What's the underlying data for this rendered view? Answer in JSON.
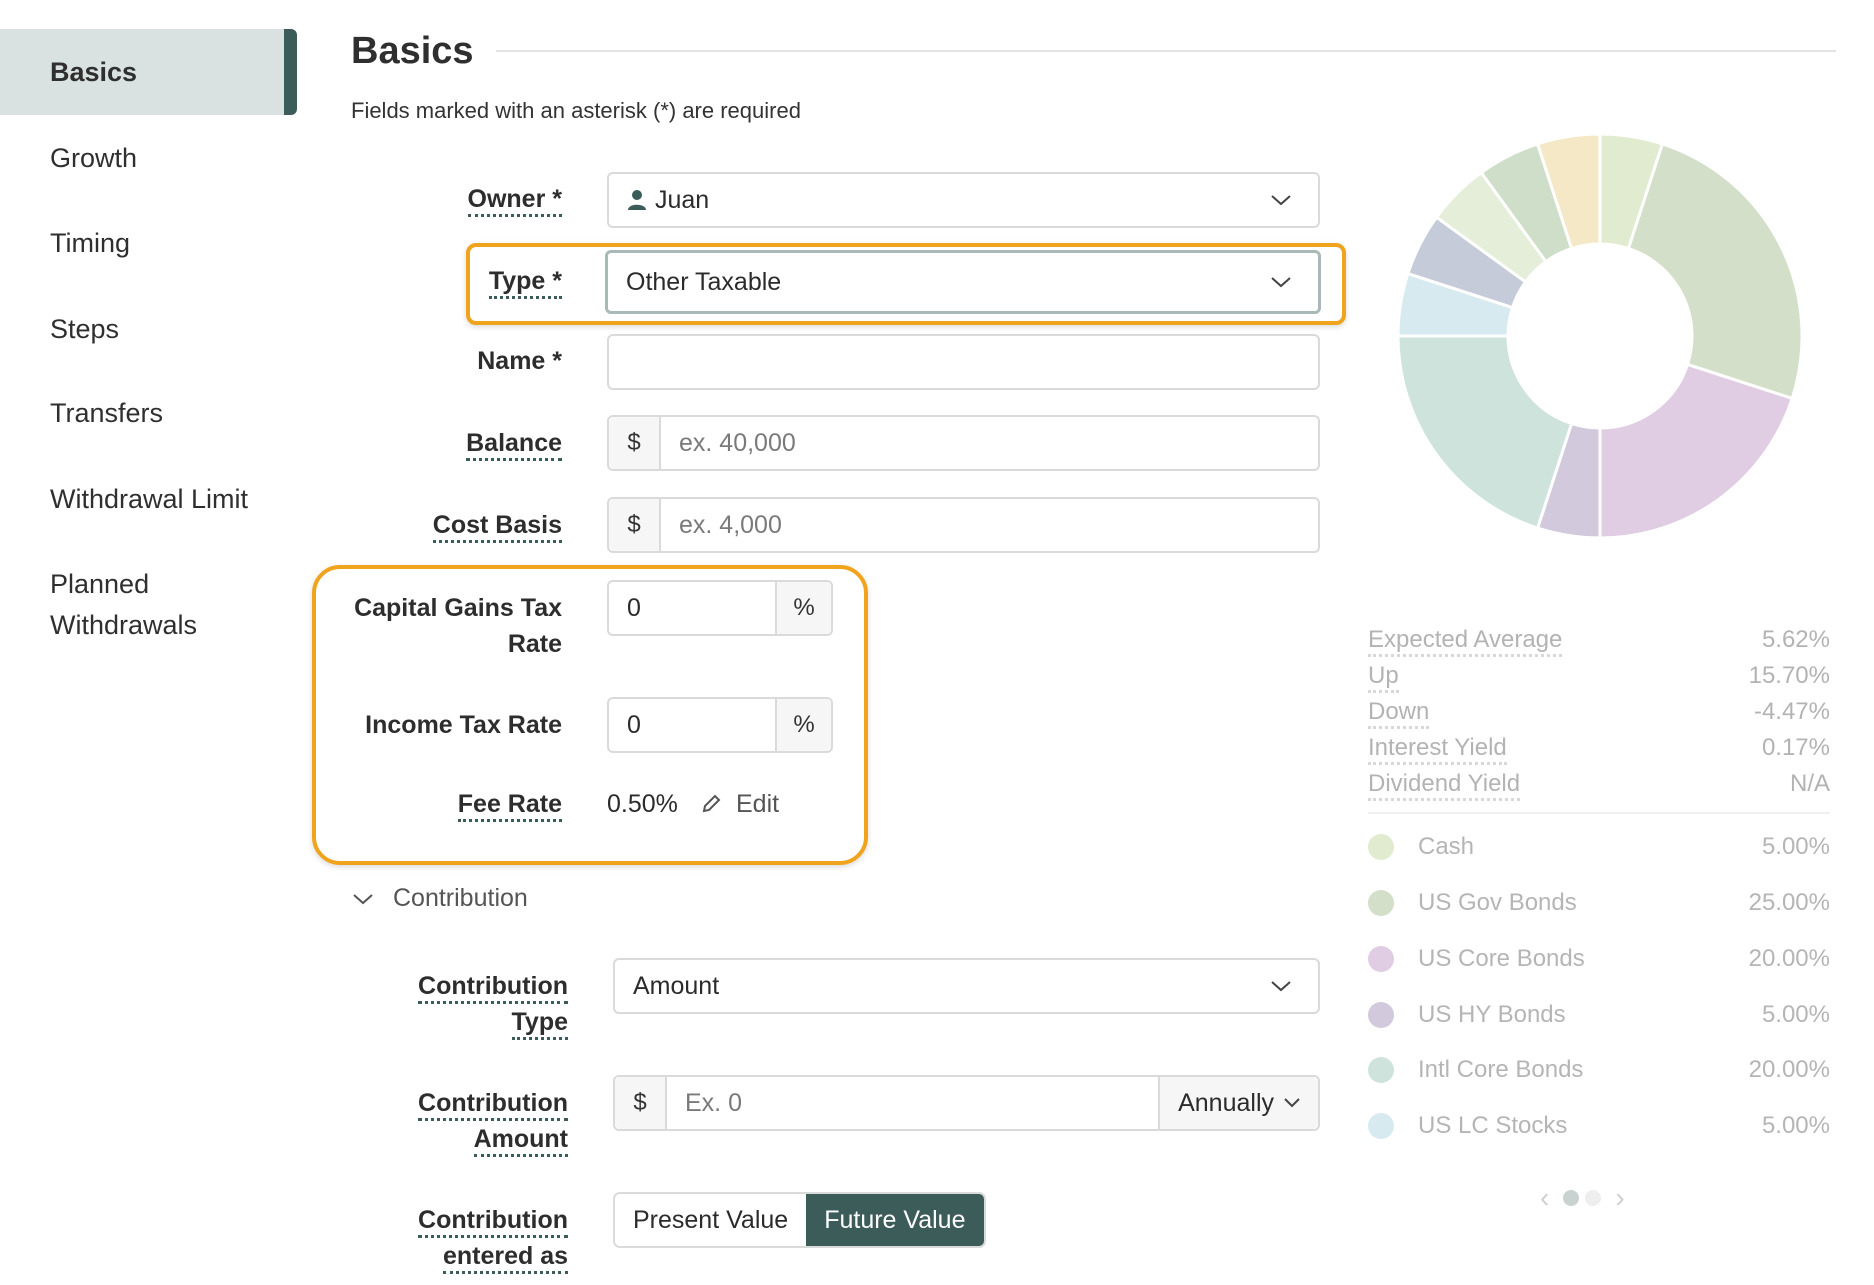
{
  "sidebar": {
    "items": [
      {
        "label": "Basics",
        "active": true
      },
      {
        "label": "Growth"
      },
      {
        "label": "Timing"
      },
      {
        "label": "Steps"
      },
      {
        "label": "Transfers"
      },
      {
        "label": "Withdrawal Limit"
      },
      {
        "label": "Planned Withdrawals"
      }
    ]
  },
  "header": {
    "title": "Basics",
    "required_note": "Fields marked with an asterisk (*) are required"
  },
  "form": {
    "owner": {
      "label": "Owner *",
      "value": "Juan"
    },
    "type": {
      "label": "Type *",
      "value": "Other Taxable"
    },
    "name": {
      "label": "Name *",
      "value": ""
    },
    "balance": {
      "label": "Balance",
      "prefix": "$",
      "placeholder": "ex. 40,000"
    },
    "cost_basis": {
      "label": "Cost Basis",
      "prefix": "$",
      "placeholder": "ex. 4,000"
    },
    "capital_gains": {
      "label_line1": "Capital Gains Tax",
      "label_line2": "Rate",
      "value": "0",
      "suffix": "%"
    },
    "income_tax": {
      "label": "Income Tax Rate",
      "value": "0",
      "suffix": "%"
    },
    "fee_rate": {
      "label": "Fee Rate",
      "value": "0.50%",
      "edit_label": "Edit"
    }
  },
  "contribution": {
    "section_label": "Contribution",
    "type": {
      "label_line1": "Contribution",
      "label_line2": "Type",
      "value": "Amount"
    },
    "amount": {
      "label_line1": "Contribution",
      "label_line2": "Amount",
      "prefix": "$",
      "placeholder": "Ex. 0",
      "frequency": "Annually"
    },
    "entered_as": {
      "label_line1": "Contribution",
      "label_line2": "entered as",
      "options": [
        "Present Value",
        "Future Value"
      ],
      "selected": "Future Value"
    }
  },
  "stats": [
    {
      "label": "Expected Average",
      "value": "5.62%"
    },
    {
      "label": "Up",
      "value": "15.70%"
    },
    {
      "label": "Down",
      "value": "-4.47%"
    },
    {
      "label": "Interest Yield",
      "value": "0.17%"
    },
    {
      "label": "Dividend Yield",
      "value": "N/A"
    }
  ],
  "allocation": [
    {
      "name": "Cash",
      "value": "5.00%",
      "color": "#e0ebcf"
    },
    {
      "name": "US Gov Bonds",
      "value": "25.00%",
      "color": "#d3dfc8"
    },
    {
      "name": "US Core Bonds",
      "value": "20.00%",
      "color": "#e0cde3"
    },
    {
      "name": "US HY Bonds",
      "value": "5.00%",
      "color": "#d2cadc"
    },
    {
      "name": "Intl Core Bonds",
      "value": "20.00%",
      "color": "#cee3db"
    },
    {
      "name": "US LC Stocks",
      "value": "5.00%",
      "color": "#d7eaf0"
    }
  ],
  "chart_data": {
    "type": "pie",
    "slices": [
      {
        "label": "Cash",
        "value": 5,
        "color": "#e0ebcf"
      },
      {
        "label": "US Gov Bonds",
        "value": 25,
        "color": "#d3dfc8"
      },
      {
        "label": "US Core Bonds",
        "value": 20,
        "color": "#e0cde3"
      },
      {
        "label": "US HY Bonds",
        "value": 5,
        "color": "#d2cadc"
      },
      {
        "label": "Intl Core Bonds",
        "value": 20,
        "color": "#cee3db"
      },
      {
        "label": "US LC Stocks",
        "value": 5,
        "color": "#d7eaf0"
      },
      {
        "value": 5,
        "color": "#c6cbd9"
      },
      {
        "value": 5,
        "color": "#e4eed9"
      },
      {
        "value": 5,
        "color": "#cfdec9"
      },
      {
        "value": 5,
        "color": "#f5e8c6"
      }
    ]
  },
  "pager": {
    "prev": "‹",
    "next": "›",
    "active_index": 0,
    "count": 2
  },
  "colors": {
    "accent": "#3c5c5a",
    "highlight": "#f0a31d"
  }
}
